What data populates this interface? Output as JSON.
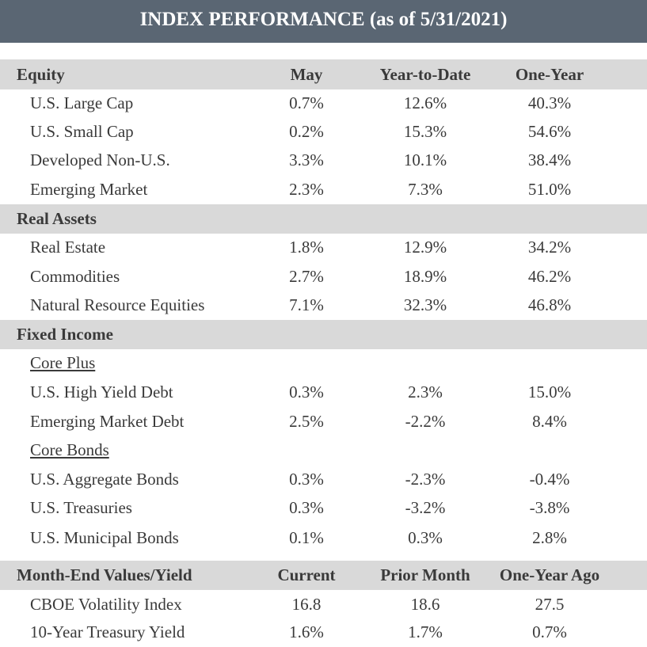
{
  "title": "INDEX PERFORMANCE (as of 5/31/2021)",
  "columns": [
    "May",
    "Year-to-Date",
    "One-Year"
  ],
  "sections": [
    {
      "name": "Equity",
      "rows": [
        {
          "label": "U.S. Large Cap",
          "values": [
            "0.7%",
            "12.6%",
            "40.3%"
          ]
        },
        {
          "label": "U.S. Small Cap",
          "values": [
            "0.2%",
            "15.3%",
            "54.6%"
          ]
        },
        {
          "label": "Developed Non-U.S.",
          "values": [
            "3.3%",
            "10.1%",
            "38.4%"
          ]
        },
        {
          "label": "Emerging Market",
          "values": [
            "2.3%",
            "7.3%",
            "51.0%"
          ]
        }
      ]
    },
    {
      "name": "Real Assets",
      "rows": [
        {
          "label": "Real Estate",
          "values": [
            "1.8%",
            "12.9%",
            "34.2%"
          ]
        },
        {
          "label": "Commodities",
          "values": [
            "2.7%",
            "18.9%",
            "46.2%"
          ]
        },
        {
          "label": "Natural Resource Equities",
          "values": [
            "7.1%",
            "32.3%",
            "46.8%"
          ]
        }
      ]
    },
    {
      "name": "Fixed Income",
      "subsections": [
        {
          "name": "Core Plus",
          "rows": [
            {
              "label": "U.S. High Yield Debt",
              "values": [
                "0.3%",
                "2.3%",
                "15.0%"
              ]
            },
            {
              "label": "Emerging Market Debt",
              "values": [
                "2.5%",
                "-2.2%",
                "8.4%"
              ]
            }
          ]
        },
        {
          "name": "Core Bonds",
          "rows": [
            {
              "label": "U.S. Aggregate Bonds",
              "values": [
                "0.3%",
                "-2.3%",
                "-0.4%"
              ]
            },
            {
              "label": "U.S. Treasuries",
              "values": [
                "0.3%",
                "-3.2%",
                "-3.8%"
              ]
            },
            {
              "label": "U.S. Municipal Bonds",
              "values": [
                "0.1%",
                "0.3%",
                "2.8%"
              ]
            }
          ]
        }
      ]
    }
  ],
  "month_end": {
    "name": "Month-End Values/Yield",
    "columns": [
      "Current",
      "Prior Month",
      "One-Year Ago"
    ],
    "rows": [
      {
        "label": "CBOE Volatility Index",
        "values": [
          "16.8",
          "18.6",
          "27.5"
        ]
      },
      {
        "label": "10-Year Treasury Yield",
        "values": [
          "1.6%",
          "1.7%",
          "0.7%"
        ]
      }
    ]
  }
}
